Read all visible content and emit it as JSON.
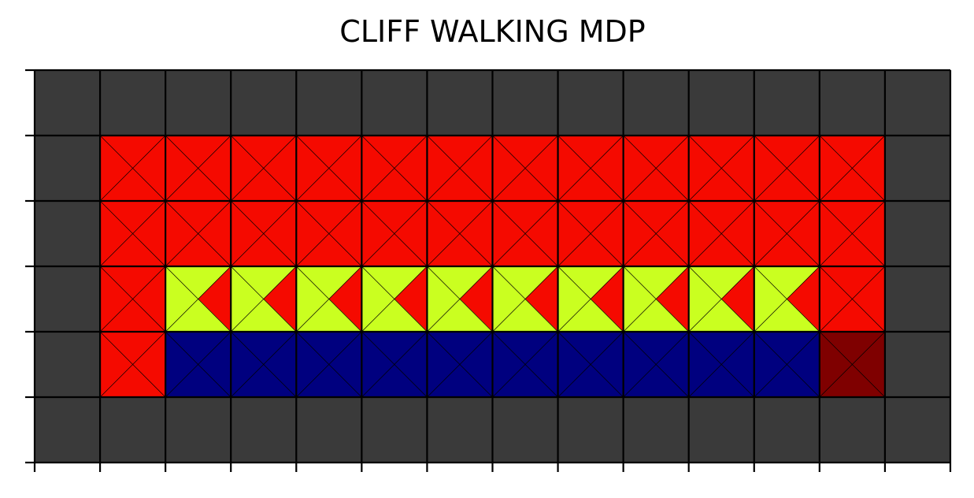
{
  "chart_data": {
    "type": "heatmap",
    "title": "CLIFF WALKING MDP",
    "xlabel": "",
    "ylabel": "",
    "columns": 14,
    "rows": 6,
    "xlim": [
      0,
      14
    ],
    "ylim": [
      0,
      6
    ],
    "tick_labels_shown": false,
    "grid": true,
    "colors": {
      "wall": "#3a3a3a",
      "low": "#f50a00",
      "high": "#caff20",
      "cliff": "#00007f",
      "goal": "#7f0000",
      "gridline": "#000000"
    },
    "cell_grid": [
      [
        "wall",
        "wall",
        "wall",
        "wall",
        "wall",
        "wall",
        "wall",
        "wall",
        "wall",
        "wall",
        "wall",
        "wall",
        "wall",
        "wall"
      ],
      [
        "wall",
        "state",
        "state",
        "state",
        "state",
        "state",
        "state",
        "state",
        "state",
        "state",
        "state",
        "state",
        "state",
        "wall"
      ],
      [
        "wall",
        "state",
        "state",
        "state",
        "state",
        "state",
        "state",
        "state",
        "state",
        "state",
        "state",
        "state",
        "state",
        "wall"
      ],
      [
        "wall",
        "state",
        "state",
        "state",
        "state",
        "state",
        "state",
        "state",
        "state",
        "state",
        "state",
        "state",
        "state",
        "wall"
      ],
      [
        "wall",
        "state",
        "cliff",
        "cliff",
        "cliff",
        "cliff",
        "cliff",
        "cliff",
        "cliff",
        "cliff",
        "cliff",
        "cliff",
        "goal",
        "wall"
      ],
      [
        "wall",
        "wall",
        "wall",
        "wall",
        "wall",
        "wall",
        "wall",
        "wall",
        "wall",
        "wall",
        "wall",
        "wall",
        "wall",
        "wall"
      ]
    ],
    "action_value_triangles": {
      "order": [
        "top",
        "right",
        "bottom",
        "left"
      ],
      "rows": [
        [
          null,
          null,
          null,
          null,
          null,
          null,
          null,
          null,
          null,
          null,
          null,
          null,
          null,
          null
        ],
        [
          null,
          [
            0,
            0,
            0,
            0
          ],
          [
            0,
            0,
            0,
            0
          ],
          [
            0,
            0,
            0,
            0
          ],
          [
            0,
            0,
            0,
            0
          ],
          [
            0,
            0,
            0,
            0
          ],
          [
            0,
            0,
            0,
            0
          ],
          [
            0,
            0,
            0,
            0
          ],
          [
            0,
            0,
            0,
            0
          ],
          [
            0,
            0,
            0,
            0
          ],
          [
            0,
            0,
            0,
            0
          ],
          [
            0,
            0,
            0,
            0
          ],
          [
            0,
            0,
            0,
            0
          ],
          null
        ],
        [
          null,
          [
            0,
            0,
            0,
            0
          ],
          [
            0,
            0,
            0,
            0
          ],
          [
            0,
            0,
            0,
            0
          ],
          [
            0,
            0,
            0,
            0
          ],
          [
            0,
            0,
            0,
            0
          ],
          [
            0,
            0,
            0,
            0
          ],
          [
            0,
            0,
            0,
            0
          ],
          [
            0,
            0,
            0,
            0
          ],
          [
            0,
            0,
            0,
            0
          ],
          [
            0,
            0,
            0,
            0
          ],
          [
            0,
            0,
            0,
            0
          ],
          [
            0,
            0,
            0,
            0
          ],
          null
        ],
        [
          null,
          [
            0,
            0,
            0,
            0
          ],
          [
            1,
            0,
            1,
            1
          ],
          [
            1,
            0,
            1,
            1
          ],
          [
            1,
            0,
            1,
            1
          ],
          [
            1,
            0,
            1,
            1
          ],
          [
            1,
            0,
            1,
            1
          ],
          [
            1,
            0,
            1,
            1
          ],
          [
            1,
            0,
            1,
            1
          ],
          [
            1,
            0,
            1,
            1
          ],
          [
            1,
            0,
            1,
            1
          ],
          [
            1,
            0,
            1,
            1
          ],
          [
            0,
            0,
            0,
            0
          ],
          null
        ],
        [
          null,
          [
            0,
            0,
            0,
            0
          ],
          null,
          null,
          null,
          null,
          null,
          null,
          null,
          null,
          null,
          null,
          null,
          null
        ],
        [
          null,
          null,
          null,
          null,
          null,
          null,
          null,
          null,
          null,
          null,
          null,
          null,
          null,
          null
        ]
      ]
    }
  }
}
